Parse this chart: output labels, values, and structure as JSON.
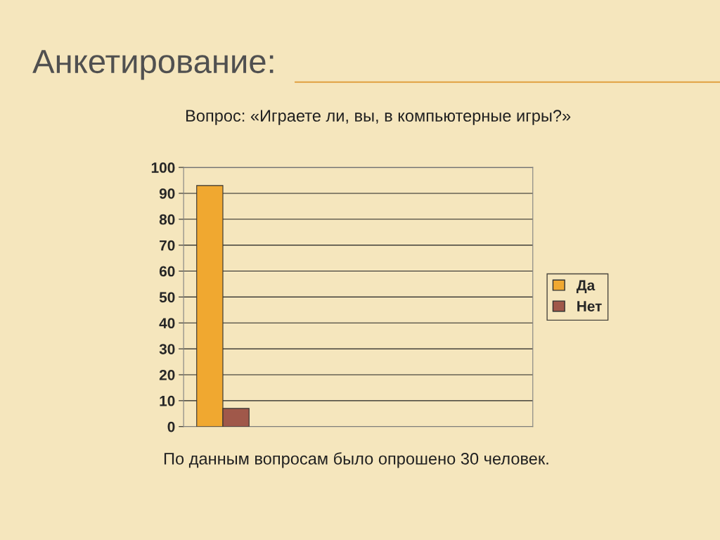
{
  "chart_data": {
    "type": "bar",
    "title": "Анкетирование:",
    "subtitle": "Вопрос: «Играете ли, вы, в компьютерные игры?»",
    "annotations": [
      "По данным вопросам было опрошено 30 человек."
    ],
    "categories": [
      null,
      null,
      null,
      null
    ],
    "series": [
      {
        "name": "Да",
        "color": "#f0a830",
        "values": [
          93,
          null,
          null,
          null
        ]
      },
      {
        "name": "Нет",
        "color": "#a0584a",
        "values": [
          7,
          null,
          null,
          null
        ]
      }
    ],
    "ylim": [
      0,
      100
    ],
    "yticks": [
      0,
      10,
      20,
      30,
      40,
      50,
      60,
      70,
      80,
      90,
      100
    ],
    "grid": "y",
    "legend": "right"
  }
}
